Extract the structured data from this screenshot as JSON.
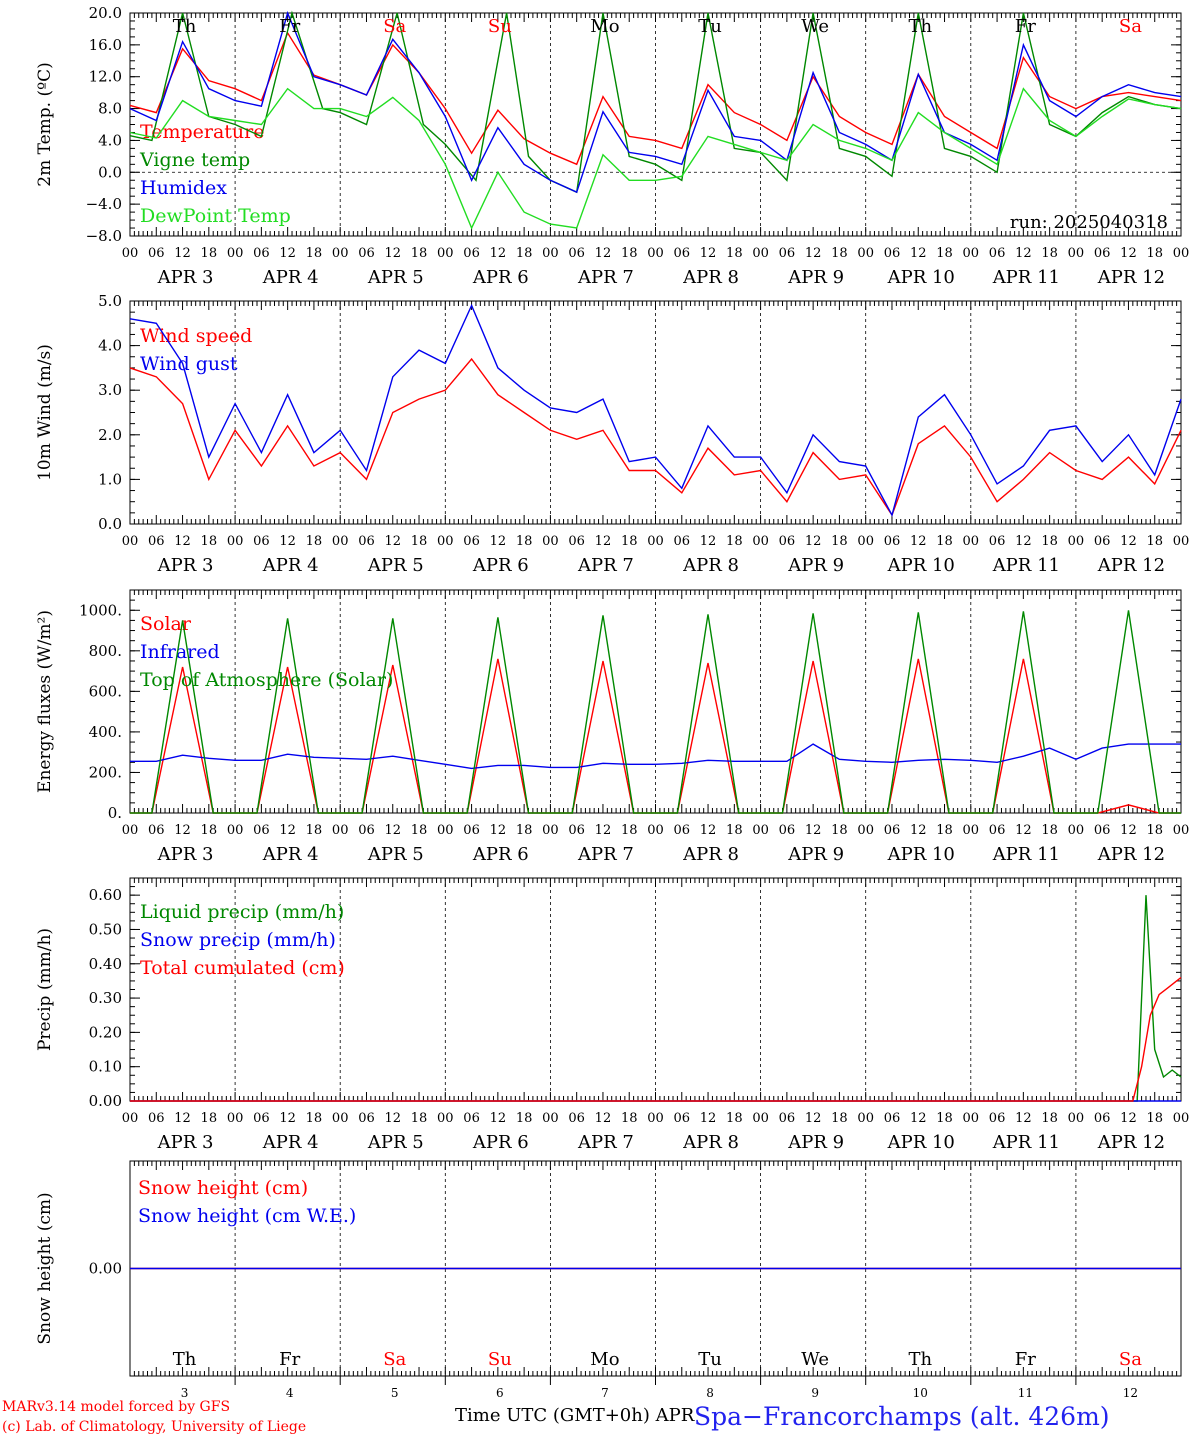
{
  "colors": {
    "red": "#ff0000",
    "green": "#008800",
    "blue": "#0000ee",
    "lightgreen": "#22dd22",
    "black": "#000000"
  },
  "days": [
    {
      "abbr": "Th",
      "num": "3",
      "color": "#000000"
    },
    {
      "abbr": "Fr",
      "num": "4",
      "color": "#000000"
    },
    {
      "abbr": "Sa",
      "num": "5",
      "color": "#ff0000"
    },
    {
      "abbr": "Su",
      "num": "6",
      "color": "#ff0000"
    },
    {
      "abbr": "Mo",
      "num": "7",
      "color": "#000000"
    },
    {
      "abbr": "Tu",
      "num": "8",
      "color": "#000000"
    },
    {
      "abbr": "We",
      "num": "9",
      "color": "#000000"
    },
    {
      "abbr": "Th",
      "num": "10",
      "color": "#000000"
    },
    {
      "abbr": "Fr",
      "num": "11",
      "color": "#000000"
    },
    {
      "abbr": "Sa",
      "num": "12",
      "color": "#ff0000"
    }
  ],
  "hour_labels": [
    "00",
    "06",
    "12",
    "18"
  ],
  "date_labels": [
    "APR  3",
    "APR  4",
    "APR  5",
    "APR  6",
    "APR  7",
    "APR  8",
    "APR  9",
    "APR 10",
    "APR 11",
    "APR 12"
  ],
  "run_label": "run: 2025040318",
  "footer": {
    "model": "MARv3.14 model forced by GFS",
    "copyright": "(c) Lab. of Climatology, University of Liege",
    "axis_title": "Time UTC (GMT+0h) APR",
    "station": "Spa−Francorchamps (alt. 426m)"
  },
  "chart_data": [
    {
      "type": "line",
      "ylabel": "2m Temp. (ºC)",
      "ylim": [
        -8,
        20
      ],
      "yticks": [
        "−8.0",
        "−4.0",
        "0.0",
        "4.0",
        "8.0",
        "12.0",
        "16.0",
        "20.0"
      ],
      "ytick_values": [
        -8,
        -4,
        0,
        4,
        8,
        12,
        16,
        20
      ],
      "zero_line": true,
      "series": [
        {
          "name": "Temperature",
          "color": "#ff0000",
          "x": [
            0,
            6,
            12,
            18,
            24,
            30,
            36,
            42,
            48,
            54,
            60,
            66,
            72,
            78,
            84,
            90,
            96,
            102,
            108,
            114,
            120,
            126,
            132,
            138,
            144,
            150,
            156,
            162,
            168,
            174,
            180,
            186,
            192,
            198,
            204,
            210,
            216,
            222,
            228,
            234,
            240
          ],
          "y": [
            8.4,
            7.5,
            15.5,
            11.5,
            10.5,
            9.0,
            17.5,
            12.2,
            11.0,
            9.7,
            16.0,
            12.5,
            8.0,
            2.4,
            7.8,
            4.2,
            2.4,
            1.0,
            9.5,
            4.5,
            4.0,
            3.0,
            11.0,
            7.5,
            6.0,
            4.0,
            12.0,
            7.0,
            5.0,
            3.5,
            12.3,
            7.0,
            5.0,
            3.0,
            14.4,
            9.5,
            8.0,
            9.5,
            10.0,
            9.5,
            9.0
          ]
        },
        {
          "name": "Vigne temp",
          "color": "#008800",
          "x": [
            0,
            5,
            12,
            18,
            24,
            30,
            37,
            44,
            48,
            54,
            61,
            67,
            72,
            79,
            86,
            91,
            96,
            102,
            108,
            114,
            120,
            126,
            132,
            138,
            144,
            150,
            156,
            162,
            168,
            174,
            180,
            186,
            192,
            198,
            204,
            210,
            216,
            222,
            228,
            234,
            240
          ],
          "y": [
            4.6,
            4.0,
            20.0,
            7.0,
            6.0,
            4.5,
            20.0,
            8.0,
            7.5,
            6.0,
            20.0,
            6.0,
            3.5,
            -1.0,
            20.0,
            2.0,
            -1.0,
            -2.5,
            20.0,
            2.0,
            1.0,
            -1.0,
            20.0,
            3.0,
            2.5,
            -1.0,
            20.0,
            3.0,
            2.0,
            -0.5,
            20.0,
            3.0,
            2.0,
            0.0,
            20.0,
            6.0,
            4.5,
            7.5,
            9.5,
            8.5,
            8.0
          ]
        },
        {
          "name": "Humidex",
          "color": "#0000ee",
          "x": [
            0,
            6,
            12,
            18,
            24,
            30,
            36,
            42,
            48,
            54,
            60,
            66,
            72,
            78,
            84,
            90,
            96,
            102,
            108,
            114,
            120,
            126,
            132,
            138,
            144,
            150,
            156,
            162,
            168,
            174,
            180,
            186,
            192,
            198,
            204,
            210,
            216,
            222,
            228,
            234,
            240
          ],
          "y": [
            8.0,
            6.5,
            16.4,
            10.5,
            9.0,
            8.3,
            20.0,
            12.0,
            11.0,
            9.7,
            16.7,
            12.5,
            7.0,
            -1.0,
            5.6,
            1.0,
            -1.0,
            -2.5,
            7.6,
            2.5,
            2.0,
            1.0,
            10.3,
            4.5,
            4.0,
            1.5,
            12.5,
            5.0,
            3.5,
            1.5,
            12.3,
            5.0,
            3.5,
            1.5,
            16.0,
            9.0,
            7.0,
            9.5,
            11.0,
            10.0,
            9.5
          ]
        },
        {
          "name": "DewPoint Temp",
          "color": "#22dd22",
          "x": [
            0,
            6,
            12,
            18,
            24,
            30,
            36,
            42,
            48,
            54,
            60,
            66,
            72,
            78,
            84,
            90,
            96,
            102,
            108,
            114,
            120,
            126,
            132,
            138,
            144,
            150,
            156,
            162,
            168,
            174,
            180,
            186,
            192,
            198,
            204,
            210,
            216,
            222,
            228,
            234,
            240
          ],
          "y": [
            5.0,
            4.3,
            9.0,
            7.0,
            6.5,
            6.0,
            10.5,
            8.0,
            8.0,
            7.0,
            9.4,
            6.5,
            1.0,
            -7.0,
            0.0,
            -5.0,
            -6.5,
            -7.0,
            2.2,
            -1.0,
            -1.0,
            -0.5,
            4.5,
            3.5,
            2.5,
            1.5,
            6.0,
            4.0,
            3.0,
            1.5,
            7.5,
            5.0,
            3.0,
            1.0,
            10.5,
            6.5,
            4.5,
            7.0,
            9.2,
            8.5,
            8.0
          ]
        }
      ]
    },
    {
      "type": "line",
      "ylabel": "10m Wind (m/s)",
      "ylim": [
        0,
        5
      ],
      "yticks": [
        "0.0",
        "1.0",
        "2.0",
        "3.0",
        "4.0",
        "5.0"
      ],
      "ytick_values": [
        0,
        1,
        2,
        3,
        4,
        5
      ],
      "series": [
        {
          "name": "Wind speed",
          "color": "#ff0000",
          "x": [
            0,
            6,
            12,
            18,
            24,
            30,
            36,
            42,
            48,
            54,
            60,
            66,
            72,
            78,
            84,
            90,
            96,
            102,
            108,
            114,
            120,
            126,
            132,
            138,
            144,
            150,
            156,
            162,
            168,
            174,
            180,
            186,
            192,
            198,
            204,
            210,
            216,
            222,
            228,
            234,
            240
          ],
          "y": [
            3.5,
            3.3,
            2.7,
            1.0,
            2.1,
            1.3,
            2.2,
            1.3,
            1.6,
            1.0,
            2.5,
            2.8,
            3.0,
            3.7,
            2.9,
            2.5,
            2.1,
            1.9,
            2.1,
            1.2,
            1.2,
            0.7,
            1.7,
            1.1,
            1.2,
            0.5,
            1.6,
            1.0,
            1.1,
            0.2,
            1.8,
            2.2,
            1.5,
            0.5,
            1.0,
            1.6,
            1.2,
            1.0,
            1.5,
            0.9,
            2.1
          ]
        },
        {
          "name": "Wind gust",
          "color": "#0000ee",
          "x": [
            0,
            6,
            12,
            18,
            24,
            30,
            36,
            42,
            48,
            54,
            60,
            66,
            72,
            78,
            84,
            90,
            96,
            102,
            108,
            114,
            120,
            126,
            132,
            138,
            144,
            150,
            156,
            162,
            168,
            174,
            180,
            186,
            192,
            198,
            204,
            210,
            216,
            222,
            228,
            234,
            240
          ],
          "y": [
            4.6,
            4.5,
            3.6,
            1.5,
            2.7,
            1.6,
            2.9,
            1.6,
            2.1,
            1.2,
            3.3,
            3.9,
            3.6,
            4.9,
            3.5,
            3.0,
            2.6,
            2.5,
            2.8,
            1.4,
            1.5,
            0.8,
            2.2,
            1.5,
            1.5,
            0.7,
            2.0,
            1.4,
            1.3,
            0.2,
            2.4,
            2.9,
            2.0,
            0.9,
            1.3,
            2.1,
            2.2,
            1.4,
            2.0,
            1.1,
            2.8
          ]
        }
      ]
    },
    {
      "type": "line",
      "ylabel": "Energy fluxes (W/m²)",
      "ylim": [
        0,
        1100
      ],
      "yticks": [
        "0.",
        "200.",
        "400.",
        "600.",
        "800.",
        "1000."
      ],
      "ytick_values": [
        0,
        200,
        400,
        600,
        800,
        1000
      ],
      "series": [
        {
          "name": "Solar",
          "color": "#ff0000",
          "x": [
            0,
            5,
            12,
            19,
            24,
            29,
            36,
            43,
            48,
            53,
            60,
            67,
            72,
            77,
            84,
            91,
            96,
            101,
            108,
            115,
            120,
            125,
            132,
            139,
            144,
            149,
            156,
            163,
            168,
            173,
            180,
            187,
            192,
            197,
            204,
            211,
            216,
            221,
            228,
            235,
            240
          ],
          "y": [
            0,
            0,
            720,
            0,
            0,
            0,
            720,
            0,
            0,
            0,
            730,
            0,
            0,
            0,
            760,
            0,
            0,
            0,
            750,
            0,
            0,
            0,
            740,
            0,
            0,
            0,
            750,
            0,
            0,
            0,
            760,
            0,
            0,
            0,
            760,
            0,
            0,
            0,
            40,
            0,
            0
          ]
        },
        {
          "name": "Infrared",
          "color": "#0000ee",
          "x": [
            0,
            6,
            12,
            18,
            24,
            30,
            36,
            42,
            48,
            54,
            60,
            66,
            72,
            78,
            84,
            90,
            96,
            102,
            108,
            114,
            120,
            126,
            132,
            138,
            144,
            150,
            156,
            162,
            168,
            174,
            180,
            186,
            192,
            198,
            204,
            210,
            216,
            222,
            228,
            234,
            240
          ],
          "y": [
            255,
            255,
            285,
            270,
            260,
            260,
            290,
            275,
            270,
            265,
            280,
            260,
            240,
            220,
            235,
            235,
            225,
            225,
            245,
            240,
            240,
            245,
            260,
            255,
            255,
            255,
            340,
            265,
            255,
            250,
            260,
            265,
            260,
            250,
            280,
            320,
            265,
            320,
            340,
            340,
            340
          ]
        },
        {
          "name": "Top of Atmosphere (Solar)",
          "color": "#008800",
          "x": [
            0,
            5,
            12,
            19,
            24,
            29,
            36,
            43,
            48,
            53,
            60,
            67,
            72,
            77,
            84,
            91,
            96,
            101,
            108,
            115,
            120,
            125,
            132,
            139,
            144,
            149,
            156,
            163,
            168,
            173,
            180,
            187,
            192,
            197,
            204,
            211,
            216,
            221,
            228,
            235,
            240
          ],
          "y": [
            0,
            0,
            950,
            0,
            0,
            0,
            960,
            0,
            0,
            0,
            960,
            0,
            0,
            0,
            965,
            0,
            0,
            0,
            975,
            0,
            0,
            0,
            980,
            0,
            0,
            0,
            985,
            0,
            0,
            0,
            990,
            0,
            0,
            0,
            995,
            0,
            0,
            0,
            1000,
            0,
            0
          ]
        }
      ]
    },
    {
      "type": "line",
      "ylabel": "Precip (mm/h)",
      "ylim": [
        0,
        0.65
      ],
      "yticks": [
        "0.00",
        "0.10",
        "0.20",
        "0.30",
        "0.40",
        "0.50",
        "0.60"
      ],
      "ytick_values": [
        0,
        0.1,
        0.2,
        0.3,
        0.4,
        0.5,
        0.6
      ],
      "series": [
        {
          "name": "Liquid precip (mm/h)",
          "color": "#008800",
          "x": [
            0,
            230,
            232,
            234,
            236,
            238,
            240
          ],
          "y": [
            0,
            0,
            0.6,
            0.15,
            0.07,
            0.09,
            0.07
          ]
        },
        {
          "name": "Snow precip (mm/h)",
          "color": "#0000ee",
          "x": [
            0,
            240
          ],
          "y": [
            0,
            0
          ]
        },
        {
          "name": "Total cumulated (cm)",
          "color": "#ff0000",
          "x": [
            0,
            229,
            231,
            233,
            235,
            237,
            239,
            240
          ],
          "y": [
            0,
            0,
            0.1,
            0.25,
            0.31,
            0.33,
            0.35,
            0.36
          ]
        }
      ]
    },
    {
      "type": "line",
      "ylabel": "Snow height (cm)",
      "ylim": [
        -1,
        1
      ],
      "yticks": [
        "0.00"
      ],
      "ytick_values": [
        0
      ],
      "series": [
        {
          "name": "Snow height (cm)",
          "color": "#ff0000",
          "x": [
            0,
            240
          ],
          "y": [
            0,
            0
          ]
        },
        {
          "name": "Snow height (cm W.E.)",
          "color": "#0000ee",
          "x": [
            0,
            240
          ],
          "y": [
            0,
            0
          ]
        }
      ]
    }
  ]
}
